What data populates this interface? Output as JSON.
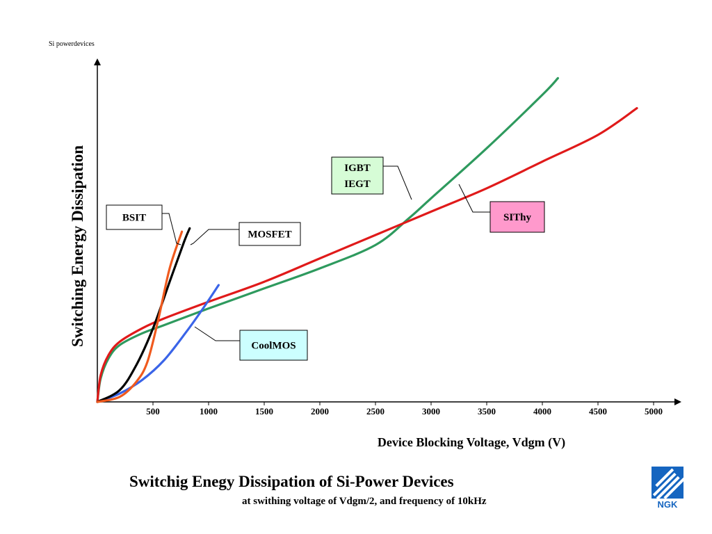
{
  "corner_label": "Si powerdevices",
  "chart_data": {
    "type": "line",
    "title": "Switchig Enegy Dissipation of Si-Power Devices",
    "subtitle": "at swithing voltage of Vdgm/2, and frequency of 10kHz",
    "xlabel": "Device Blocking Voltage, Vdgm (V)",
    "ylabel": "Switching Energy Dissipation",
    "xlim": [
      0,
      5200
    ],
    "ylim": [
      0,
      100
    ],
    "x_ticks": [
      500,
      1000,
      1500,
      2000,
      2500,
      3000,
      3500,
      4000,
      4500,
      5000
    ],
    "y_ticks": [],
    "grid": false,
    "legend": "callout boxes",
    "series": [
      {
        "name": "BSIT",
        "color": "#f05a1e",
        "points": [
          [
            0,
            0
          ],
          [
            200,
            1.5
          ],
          [
            350,
            6
          ],
          [
            450,
            12
          ],
          [
            550,
            25
          ],
          [
            650,
            40
          ],
          [
            760,
            51
          ]
        ]
      },
      {
        "name": "MOSFET",
        "color": "#000000",
        "points": [
          [
            0,
            0
          ],
          [
            200,
            3.5
          ],
          [
            350,
            11
          ],
          [
            500,
            22
          ],
          [
            650,
            36
          ],
          [
            780,
            48
          ],
          [
            830,
            52
          ]
        ]
      },
      {
        "name": "CoolMOS",
        "color": "#3a64e8",
        "points": [
          [
            0,
            0
          ],
          [
            200,
            2.5
          ],
          [
            400,
            6.5
          ],
          [
            600,
            12.5
          ],
          [
            800,
            21
          ],
          [
            950,
            28
          ],
          [
            1090,
            35
          ]
        ]
      },
      {
        "name": "IGBT / IEGT",
        "color": "#2e9a5e",
        "points": [
          [
            0,
            0
          ],
          [
            30,
            7
          ],
          [
            100,
            13
          ],
          [
            200,
            17
          ],
          [
            400,
            20.5
          ],
          [
            600,
            23
          ],
          [
            1000,
            28
          ],
          [
            1500,
            34
          ],
          [
            2000,
            40
          ],
          [
            2500,
            47
          ],
          [
            2800,
            55
          ],
          [
            3000,
            61
          ],
          [
            3500,
            76
          ],
          [
            4000,
            92
          ],
          [
            4140,
            97
          ]
        ]
      },
      {
        "name": "SIThy",
        "color": "#e01a1a",
        "points": [
          [
            0,
            0
          ],
          [
            30,
            8
          ],
          [
            100,
            14
          ],
          [
            200,
            18
          ],
          [
            400,
            22
          ],
          [
            600,
            25
          ],
          [
            1000,
            30
          ],
          [
            1500,
            36
          ],
          [
            2000,
            43
          ],
          [
            2500,
            50
          ],
          [
            3000,
            57
          ],
          [
            3500,
            64
          ],
          [
            4000,
            72
          ],
          [
            4500,
            80
          ],
          [
            4850,
            88
          ]
        ]
      }
    ],
    "callouts": [
      {
        "lines": [
          "BSIT"
        ],
        "series": "BSIT",
        "fill": "#ffffff"
      },
      {
        "lines": [
          "MOSFET"
        ],
        "series": "MOSFET",
        "fill": "#ffffff"
      },
      {
        "lines": [
          "IGBT",
          "IEGT"
        ],
        "series": "IGBT / IEGT",
        "fill": "#d6fcd6"
      },
      {
        "lines": [
          "SIThy"
        ],
        "series": "SIThy",
        "fill": "#ff99cc"
      },
      {
        "lines": [
          "CoolMOS"
        ],
        "series": "CoolMOS",
        "fill": "#ccffff"
      }
    ]
  },
  "logo": {
    "text": "NGK",
    "color": "#1565c0"
  }
}
